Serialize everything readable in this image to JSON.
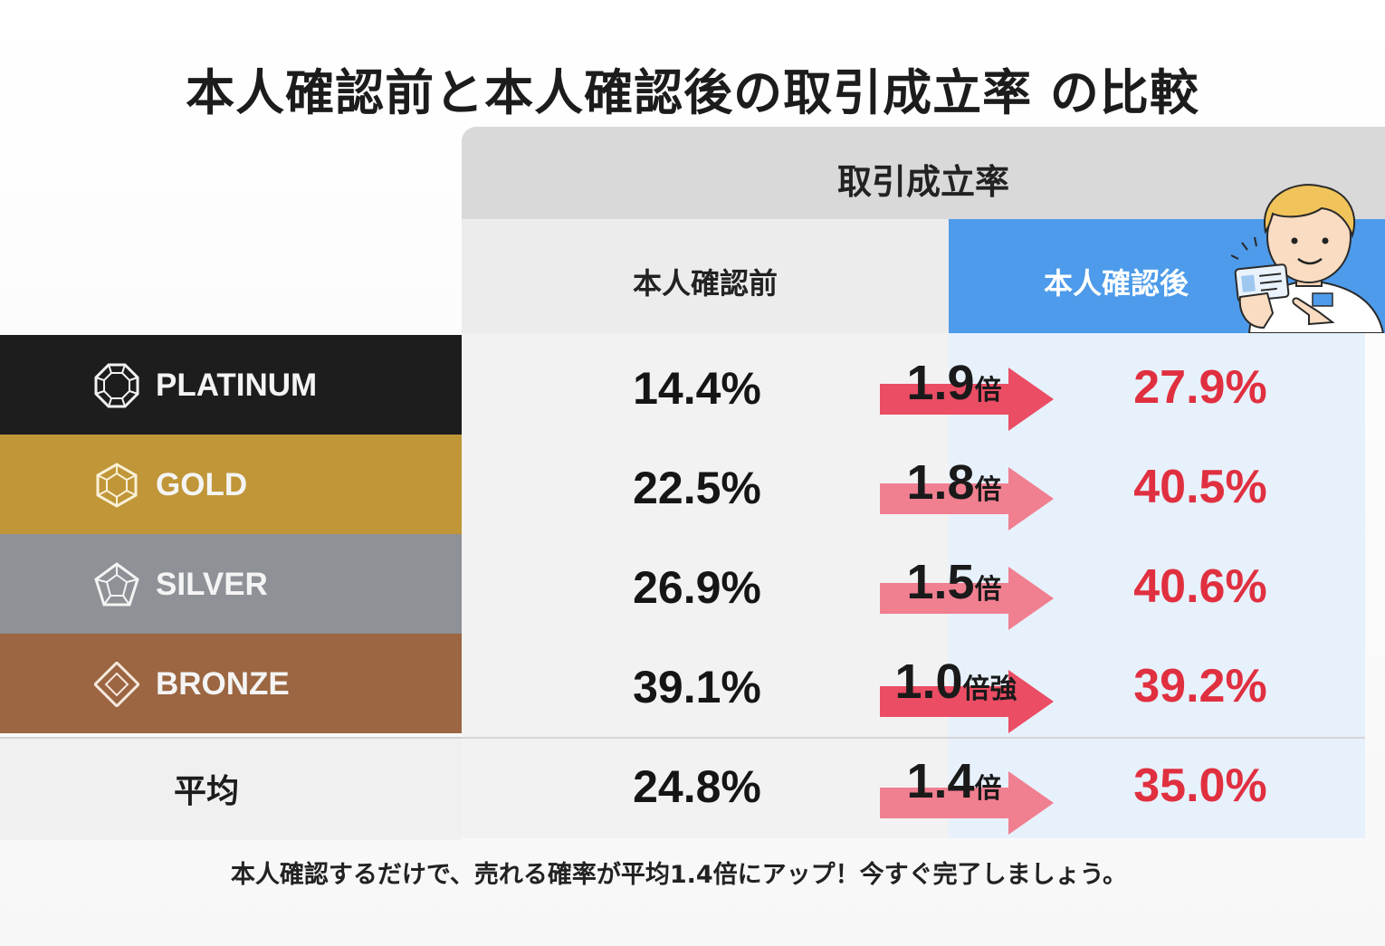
{
  "title": "本人確認前と本人確認後の取引成立率 の比較",
  "header": {
    "group": "取引成立率",
    "before": "本人確認前",
    "after": "本人確認後"
  },
  "chart_data": {
    "type": "table",
    "columns": [
      "本人確認前",
      "本人確認後"
    ],
    "rows": [
      {
        "label": "PLATINUM",
        "before": "14.4%",
        "after": "27.9%",
        "multiplier": "1.9",
        "multiplier_unit": "倍"
      },
      {
        "label": "GOLD",
        "before": "22.5%",
        "after": "40.5%",
        "multiplier": "1.8",
        "multiplier_unit": "倍"
      },
      {
        "label": "SILVER",
        "before": "26.9%",
        "after": "40.6%",
        "multiplier": "1.5",
        "multiplier_unit": "倍"
      },
      {
        "label": "BRONZE",
        "before": "39.1%",
        "after": "39.2%",
        "multiplier": "1.0",
        "multiplier_unit": "倍強"
      },
      {
        "label": "平均",
        "before": "24.8%",
        "after": "35.0%",
        "multiplier": "1.4",
        "multiplier_unit": "倍"
      }
    ]
  },
  "colors": {
    "platinum": "#1d1d1d",
    "gold": "#c09638",
    "silver": "#8e9196",
    "bronze": "#9b6641",
    "after_value": "#e03040",
    "after_header": "#4d9bea",
    "arrow": "#ea4d64"
  },
  "icons": {
    "platinum": "octagon-gem-icon",
    "gold": "hexagon-gem-icon",
    "silver": "pentagon-gem-icon",
    "bronze": "diamond-gem-icon",
    "mascot": "person-holding-id-card-icon"
  },
  "footer": "本人確認するだけで、売れる確率が平均1.4倍にアップ！今すぐ完了しましょう。"
}
